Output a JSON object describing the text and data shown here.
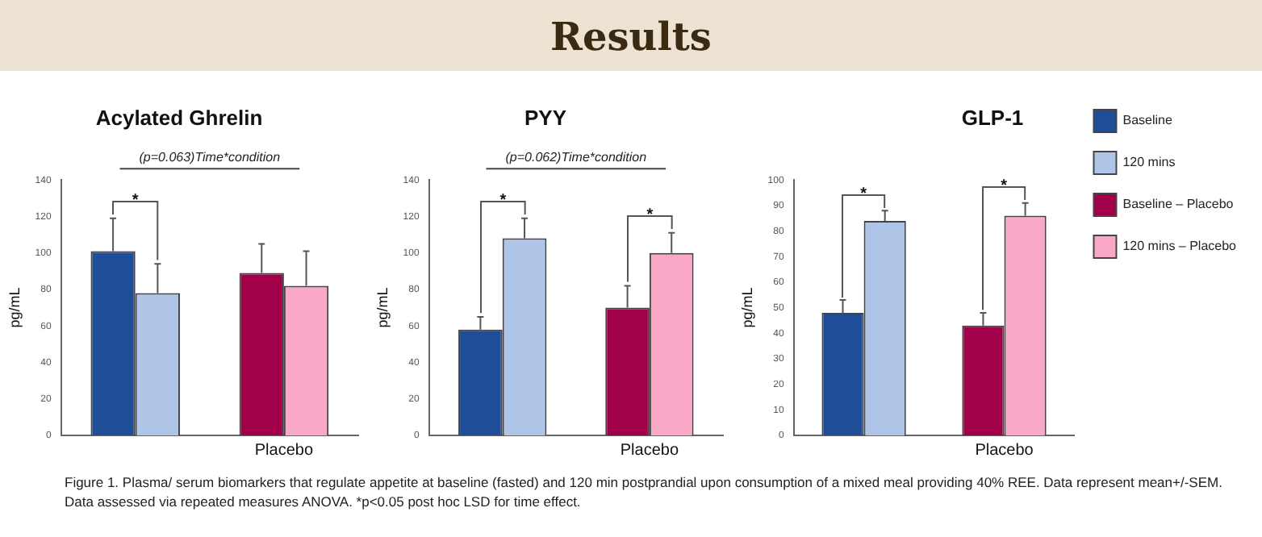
{
  "chart_data": [
    {
      "type": "other",
      "title": "Results",
      "annotations": [
        "Figure 1. Plasma/ serum biomarkers that regulate appetite at baseline (fasted) and 120 min postprandial upon consumption of a mixed meal providing 40% REE. Data represent mean+/-SEM. Data assessed via repeated measures ANOVA. *p<0.05 post hoc LSD for time effect."
      ]
    },
    {
      "type": "bar",
      "title": "Acylated Ghrelin",
      "subtitle": "(p=0.063)Time*condition",
      "ylabel": "pg/mL",
      "categories": [
        null,
        "Placebo"
      ],
      "ylim": [
        0,
        140
      ],
      "yticks": [
        0,
        20,
        40,
        60,
        80,
        100,
        120,
        140
      ],
      "legend": false,
      "annotations": [
        "*"
      ],
      "series": [
        {
          "color": "#1f4e99",
          "values": [
            101,
            null
          ],
          "errors": [
            [
              101,
              119
            ],
            null
          ]
        },
        {
          "color": "#aec5e8",
          "values": [
            78,
            null
          ],
          "errors": [
            [
              78,
              94
            ],
            null
          ]
        },
        {
          "color": "#a3004a",
          "values": [
            null,
            89
          ],
          "errors": [
            null,
            [
              89,
              105
            ]
          ]
        },
        {
          "color": "#f9a8c8",
          "values": [
            null,
            82
          ],
          "errors": [
            null,
            [
              82,
              101
            ]
          ]
        }
      ]
    },
    {
      "type": "bar",
      "title": "PYY",
      "subtitle": "(p=0.062)Time*condition",
      "ylabel": "pg/mL",
      "categories": [
        null,
        "Placebo"
      ],
      "ylim": [
        0,
        140
      ],
      "yticks": [
        0,
        20,
        40,
        60,
        80,
        100,
        120,
        140
      ],
      "legend": false,
      "annotations": [
        "*",
        "*"
      ],
      "series": [
        {
          "color": "#1f4e99",
          "values": [
            58,
            null
          ],
          "errors": [
            [
              58,
              65
            ],
            null
          ]
        },
        {
          "color": "#aec5e8",
          "values": [
            108,
            null
          ],
          "errors": [
            [
              108,
              119
            ],
            null
          ]
        },
        {
          "color": "#a3004a",
          "values": [
            null,
            70
          ],
          "errors": [
            null,
            [
              70,
              82
            ]
          ]
        },
        {
          "color": "#f9a8c8",
          "values": [
            null,
            100
          ],
          "errors": [
            null,
            [
              100,
              111
            ]
          ]
        }
      ]
    },
    {
      "type": "bar",
      "title": "GLP-1",
      "ylabel": "pg/mL",
      "categories": [
        null,
        "Placebo"
      ],
      "ylim": [
        0,
        100
      ],
      "yticks": [
        0,
        10,
        20,
        30,
        40,
        50,
        60,
        70,
        80,
        90,
        100
      ],
      "legend": "top right",
      "annotations": [
        "*",
        "*"
      ],
      "series": [
        {
          "name": "Baseline",
          "color": "#1f4e99",
          "values": [
            48,
            null
          ],
          "errors": [
            [
              48,
              53
            ],
            null
          ]
        },
        {
          "name": "120 mins",
          "color": "#aec5e8",
          "values": [
            84,
            null
          ],
          "errors": [
            [
              84,
              88
            ],
            null
          ]
        },
        {
          "name": "Baseline – Placebo",
          "color": "#a3004a",
          "values": [
            null,
            43
          ],
          "errors": [
            null,
            [
              43,
              48
            ]
          ]
        },
        {
          "name": "120 mins – Placebo",
          "color": "#f9a8c8",
          "values": [
            null,
            86
          ],
          "errors": [
            null,
            [
              86,
              91
            ]
          ]
        }
      ]
    }
  ]
}
